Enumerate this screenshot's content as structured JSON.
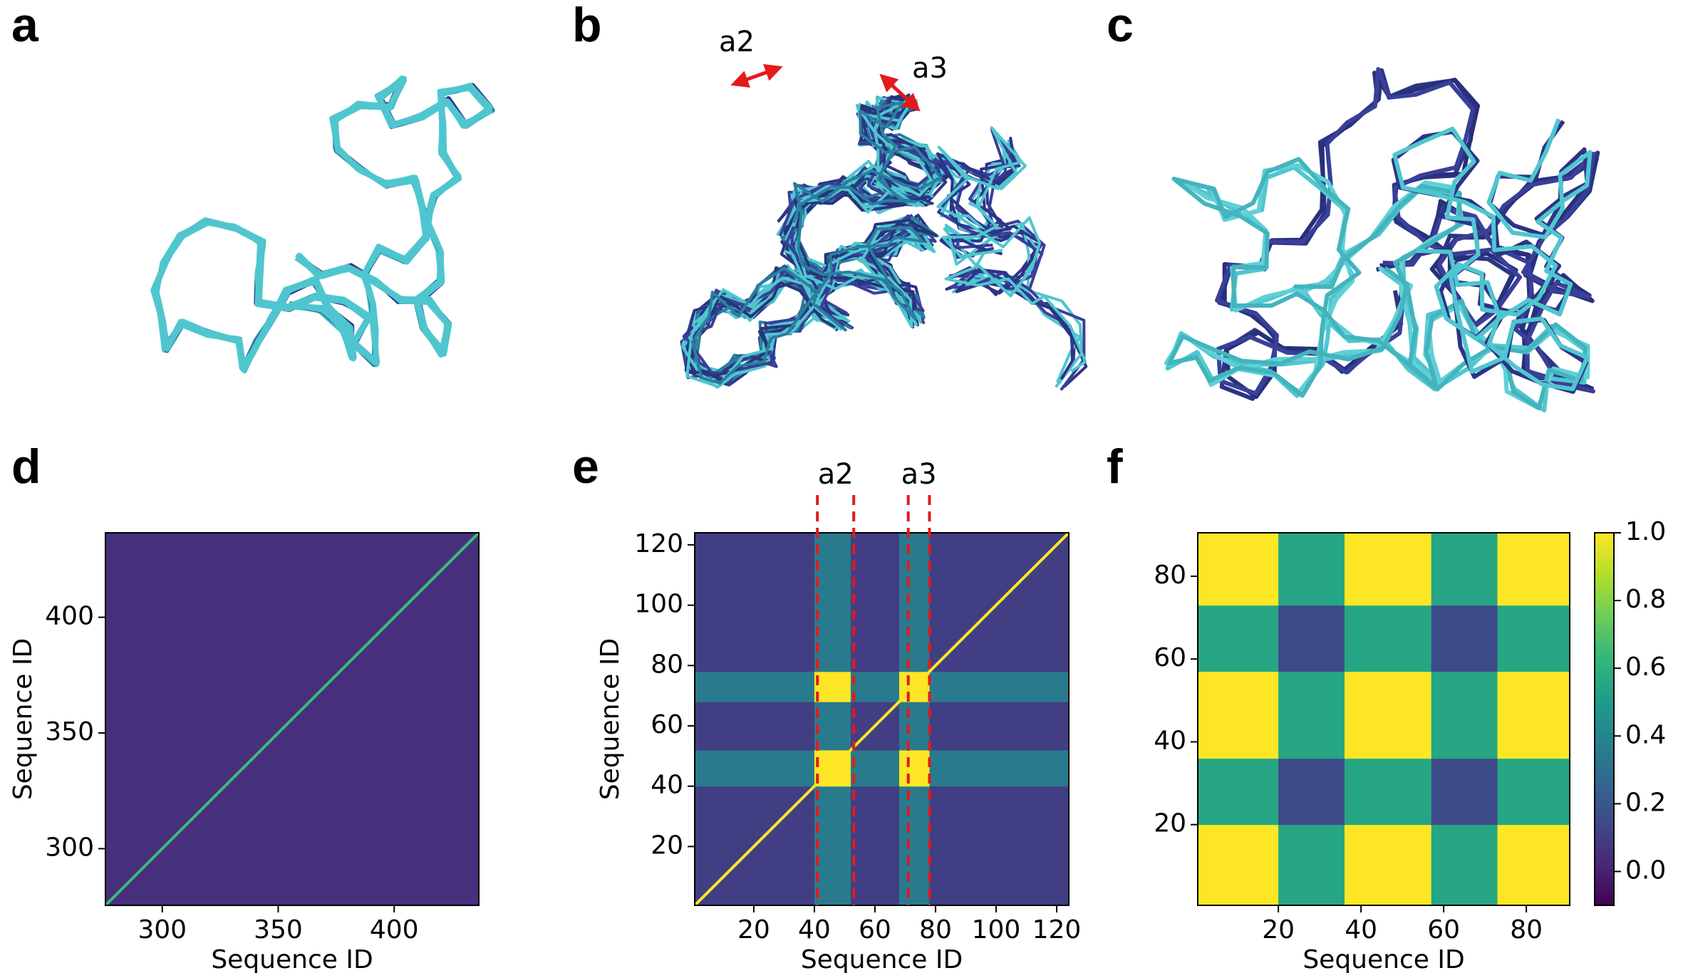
{
  "structures": [
    {
      "panel": "a"
    },
    {
      "panel": "b",
      "annotations": [
        "a2",
        "a3"
      ]
    },
    {
      "panel": "c"
    }
  ],
  "chart_data": [
    {
      "type": "heatmap",
      "panel": "d",
      "xlabel": "Sequence ID",
      "ylabel": "Sequence ID",
      "xlim": [
        275.5,
        436.5
      ],
      "ylim": [
        275.5,
        436.5
      ],
      "xticks": [
        300,
        350,
        400
      ],
      "yticks": [
        300,
        350,
        400
      ],
      "x_edges": [
        275.5,
        436.5
      ],
      "y_edges": [
        275.5,
        436.5
      ],
      "z": [
        [
          0.05
        ]
      ],
      "diagonal": 0.65,
      "clim": [
        -0.1,
        1
      ]
    },
    {
      "type": "heatmap",
      "panel": "e",
      "xlabel": "Sequence ID",
      "ylabel": "Sequence ID",
      "xlim": [
        0.5,
        124
      ],
      "ylim": [
        0.5,
        124
      ],
      "xticks": [
        20,
        40,
        60,
        80,
        100,
        120
      ],
      "yticks": [
        20,
        40,
        60,
        80,
        100,
        120
      ],
      "x_edges": [
        0.5,
        40,
        52,
        68,
        78,
        124
      ],
      "y_edges": [
        0.5,
        40,
        52,
        68,
        78,
        124
      ],
      "z": [
        [
          0.1,
          0.35,
          0.1,
          0.35,
          0.1
        ],
        [
          0.35,
          1,
          0.35,
          1,
          0.35
        ],
        [
          0.1,
          0.35,
          0.1,
          0.35,
          0.1
        ],
        [
          0.35,
          1,
          0.35,
          1,
          0.35
        ],
        [
          0.1,
          0.35,
          0.1,
          0.35,
          0.1
        ]
      ],
      "diagonal": 1,
      "clim": [
        -0.1,
        1
      ],
      "annotations": [
        "a2",
        "a3"
      ],
      "vlines": [
        41,
        53,
        71,
        78
      ],
      "vline_color": "#e41a1c"
    },
    {
      "type": "heatmap",
      "panel": "f",
      "xlabel": "Sequence ID",
      "xlim": [
        0.5,
        90.5
      ],
      "ylim": [
        0.5,
        90.5
      ],
      "xticks": [
        20,
        40,
        60,
        80
      ],
      "yticks": [
        20,
        40,
        60,
        80
      ],
      "x_edges": [
        0.5,
        20,
        36,
        57,
        73,
        90.5
      ],
      "y_edges": [
        0.5,
        20,
        36,
        57,
        73,
        90.5
      ],
      "z": [
        [
          1,
          0.55,
          1,
          0.55,
          1
        ],
        [
          0.55,
          0.15,
          0.55,
          0.15,
          0.55
        ],
        [
          1,
          0.55,
          1,
          0.55,
          1
        ],
        [
          0.55,
          0.15,
          0.55,
          0.15,
          0.55
        ],
        [
          1,
          0.55,
          1,
          0.55,
          1
        ]
      ],
      "clim": [
        -0.1,
        1
      ],
      "colorbar": true,
      "cticks": [
        {
          "value": 0,
          "label": "0.0"
        },
        0.2,
        0.4,
        0.6,
        0.8,
        {
          "value": 1,
          "label": "1.0"
        }
      ]
    }
  ]
}
